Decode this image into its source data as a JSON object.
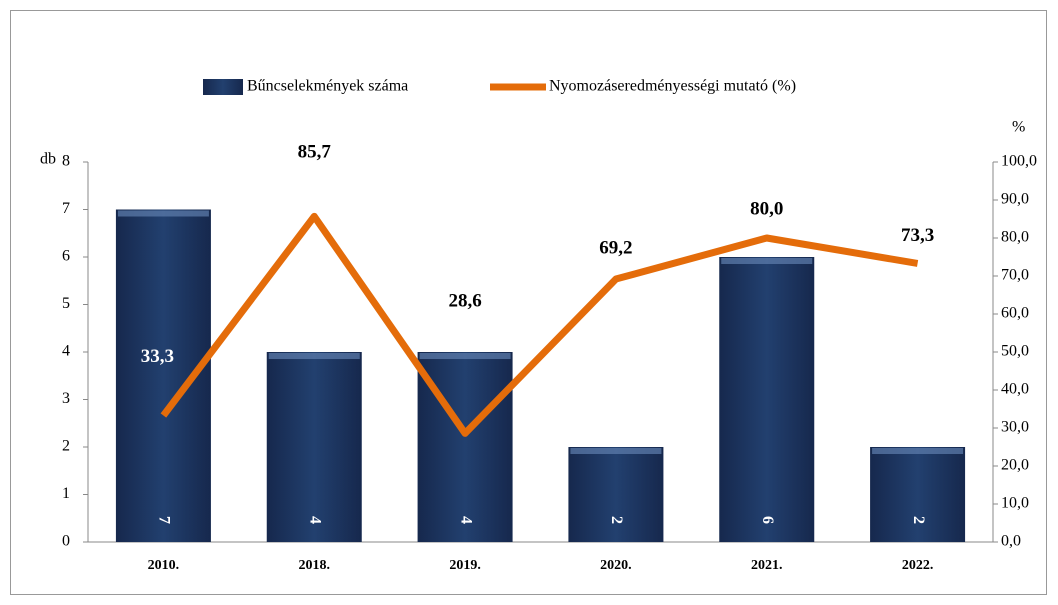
{
  "chart_data": {
    "type": "bar",
    "categories": [
      "2010.",
      "2018.",
      "2019.",
      "2020.",
      "2021.",
      "2022."
    ],
    "series": [
      {
        "name": "Bűncselekmények száma",
        "type": "bar",
        "color": "#1f3864",
        "values": [
          7,
          4,
          4,
          2,
          6,
          2
        ]
      },
      {
        "name": "Nyomozáseredményességi mutató (%)",
        "type": "line",
        "axis": "y2",
        "color": "#e46c0a",
        "values": [
          33.3,
          85.7,
          28.6,
          69.2,
          80.0,
          73.3
        ],
        "value_labels": [
          "33,3",
          "85,7",
          "28,6",
          "69,2",
          "80,0",
          "73,3"
        ]
      }
    ],
    "ylabel": "db",
    "y2label": "%",
    "ylim": [
      0,
      8
    ],
    "yticks": [
      0,
      1,
      2,
      3,
      4,
      5,
      6,
      7,
      8
    ],
    "y2lim": [
      0,
      100
    ],
    "y2ticks": [
      {
        "value": 0,
        "label": "0,0"
      },
      {
        "value": 10,
        "label": "10,0"
      },
      {
        "value": 20,
        "label": "20,0"
      },
      {
        "value": 30,
        "label": "30,0"
      },
      {
        "value": 40,
        "label": "40,0"
      },
      {
        "value": 50,
        "label": "50,0"
      },
      {
        "value": 60,
        "label": "60,0"
      },
      {
        "value": 70,
        "label": "70,0"
      },
      {
        "value": 80,
        "label": "80,0"
      },
      {
        "value": 90,
        "label": "90,0"
      },
      {
        "value": 100,
        "label": "100,0"
      }
    ],
    "legend": "top"
  }
}
